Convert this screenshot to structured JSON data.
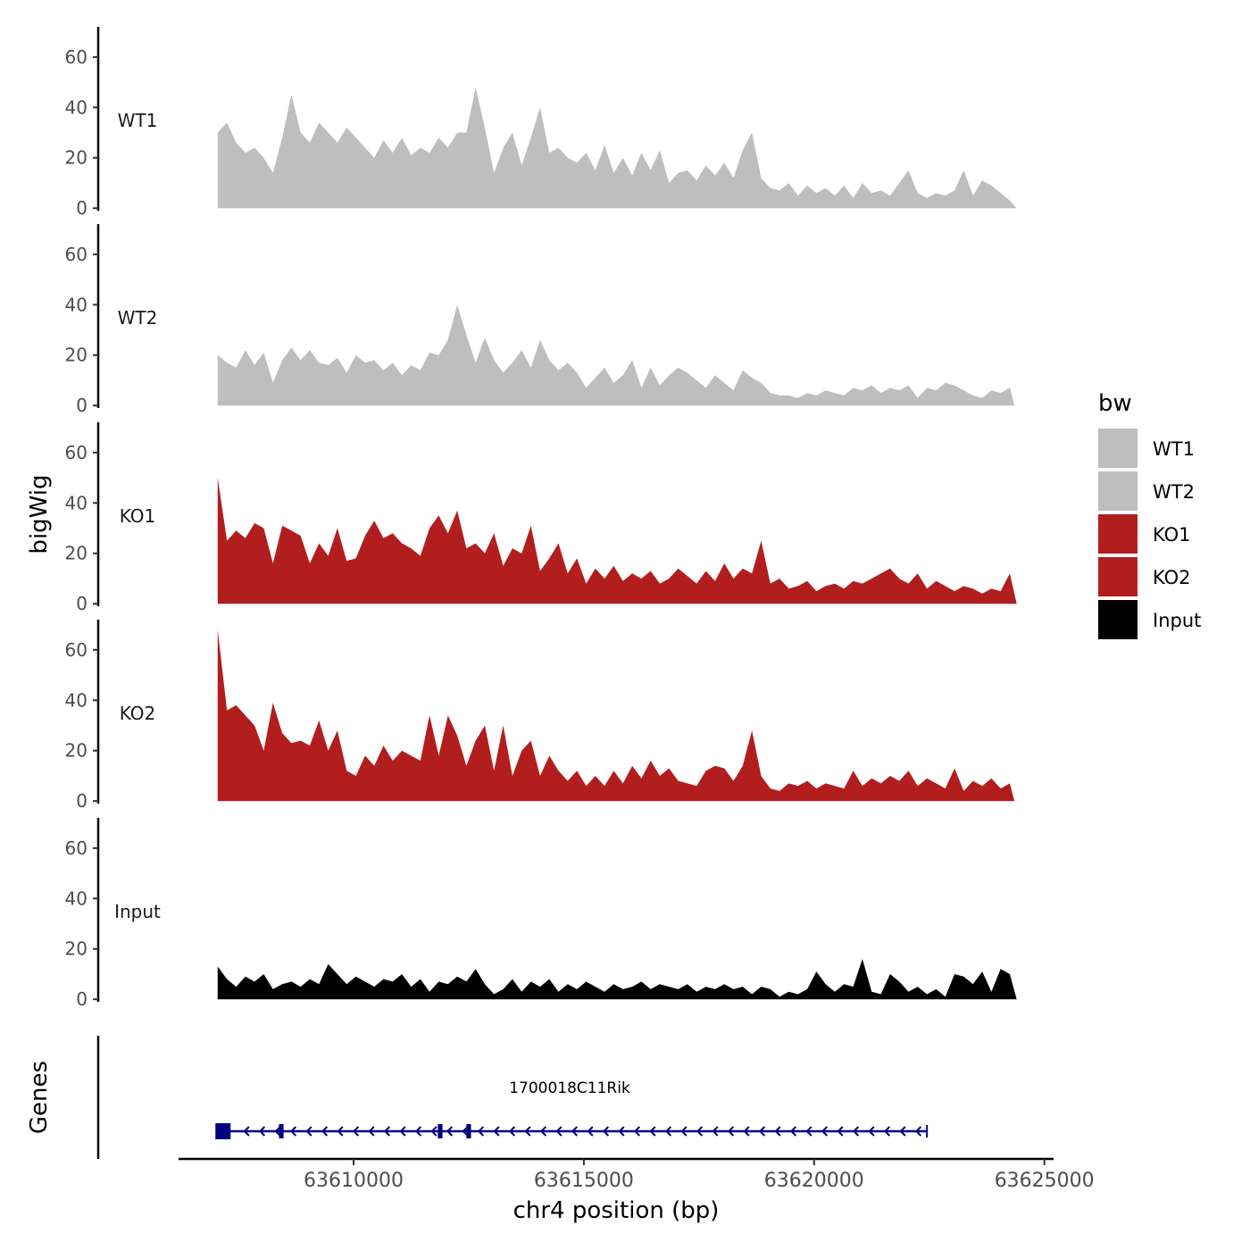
{
  "chart_data": {
    "type": "area",
    "title": "",
    "xlabel": "chr4 position (bp)",
    "ylabel": "bigWig",
    "genes_label": "Genes",
    "x_range": [
      63606200,
      63625200
    ],
    "x_ticks": [
      63610000,
      63615000,
      63620000,
      63625000
    ],
    "x_tick_labels": [
      "63610000",
      "63615000",
      "63620000",
      "63625000"
    ],
    "y_range": [
      -1,
      72
    ],
    "y_ticks": [
      0,
      20,
      40,
      60
    ],
    "y_tick_labels": [
      "0",
      "20",
      "40",
      "60"
    ],
    "legend": {
      "title": "bw",
      "position": "right",
      "entries": [
        {
          "label": "WT1",
          "color": "#bebebe"
        },
        {
          "label": "WT2",
          "color": "#bebebe"
        },
        {
          "label": "KO1",
          "color": "#b21e1e"
        },
        {
          "label": "KO2",
          "color": "#b21e1e"
        },
        {
          "label": "Input",
          "color": "#000000"
        }
      ]
    },
    "series": [
      {
        "name": "WT1",
        "color": "#bebebe",
        "x": [
          63607050,
          63607250,
          63607450,
          63607650,
          63607850,
          63608050,
          63608250,
          63608450,
          63608650,
          63608850,
          63609050,
          63609250,
          63609450,
          63609650,
          63609850,
          63610050,
          63610250,
          63610450,
          63610650,
          63610850,
          63611050,
          63611250,
          63611450,
          63611650,
          63611850,
          63612050,
          63612250,
          63612450,
          63612650,
          63612850,
          63613050,
          63613250,
          63613450,
          63613650,
          63613850,
          63614050,
          63614250,
          63614450,
          63614650,
          63614850,
          63615050,
          63615250,
          63615450,
          63615650,
          63615850,
          63616050,
          63616250,
          63616450,
          63616650,
          63616850,
          63617050,
          63617250,
          63617450,
          63617650,
          63617850,
          63618050,
          63618250,
          63618450,
          63618650,
          63618850,
          63619050,
          63619250,
          63619450,
          63619650,
          63619850,
          63620050,
          63620250,
          63620450,
          63620650,
          63620850,
          63621050,
          63621250,
          63621450,
          63621650,
          63621850,
          63622050,
          63622250,
          63622450,
          63622650,
          63622850,
          63623050,
          63623250,
          63623450,
          63623650,
          63623850,
          63624050,
          63624250,
          63624400
        ],
        "values": [
          30,
          34,
          26,
          22,
          24,
          20,
          14,
          28,
          45,
          30,
          26,
          34,
          30,
          26,
          32,
          28,
          24,
          20,
          27,
          22,
          28,
          21,
          24,
          22,
          28,
          24,
          30,
          30,
          48,
          32,
          14,
          24,
          30,
          17,
          28,
          40,
          22,
          24,
          20,
          18,
          22,
          15,
          25,
          14,
          20,
          13,
          22,
          15,
          23,
          10,
          14,
          15,
          11,
          17,
          13,
          18,
          12,
          23,
          30,
          12,
          8,
          7,
          10,
          5,
          9,
          6,
          8,
          5,
          9,
          4,
          10,
          6,
          7,
          5,
          10,
          15,
          6,
          4,
          6,
          5,
          7,
          15,
          5,
          11,
          9,
          6,
          3,
          0
        ]
      },
      {
        "name": "WT2",
        "color": "#bebebe",
        "x": [
          63607050,
          63607250,
          63607450,
          63607650,
          63607850,
          63608050,
          63608250,
          63608450,
          63608650,
          63608850,
          63609050,
          63609250,
          63609450,
          63609650,
          63609850,
          63610050,
          63610250,
          63610450,
          63610650,
          63610850,
          63611050,
          63611250,
          63611450,
          63611650,
          63611850,
          63612050,
          63612250,
          63612450,
          63612650,
          63612850,
          63613050,
          63613250,
          63613450,
          63613650,
          63613850,
          63614050,
          63614250,
          63614450,
          63614650,
          63614850,
          63615050,
          63615250,
          63615450,
          63615650,
          63615850,
          63616050,
          63616250,
          63616450,
          63616650,
          63616850,
          63617050,
          63617250,
          63617450,
          63617650,
          63617850,
          63618050,
          63618250,
          63618450,
          63618650,
          63618850,
          63619050,
          63619250,
          63619450,
          63619650,
          63619850,
          63620050,
          63620250,
          63620450,
          63620650,
          63620850,
          63621050,
          63621250,
          63621450,
          63621650,
          63621850,
          63622050,
          63622250,
          63622450,
          63622650,
          63622850,
          63623050,
          63623250,
          63623450,
          63623650,
          63623850,
          63624050,
          63624250,
          63624350
        ],
        "values": [
          20,
          17,
          15,
          22,
          16,
          21,
          9,
          18,
          23,
          18,
          22,
          17,
          16,
          19,
          13,
          20,
          17,
          18,
          14,
          17,
          12,
          16,
          14,
          21,
          20,
          26,
          40,
          28,
          17,
          27,
          18,
          13,
          17,
          22,
          15,
          26,
          18,
          14,
          17,
          13,
          7,
          11,
          15,
          9,
          12,
          18,
          7,
          15,
          8,
          12,
          15,
          13,
          10,
          7,
          12,
          9,
          6,
          14,
          11,
          9,
          5,
          4,
          4,
          3,
          5,
          4,
          6,
          5,
          4,
          7,
          6,
          8,
          5,
          7,
          6,
          8,
          3,
          7,
          6,
          9,
          8,
          6,
          4,
          3,
          6,
          5,
          7,
          0
        ]
      },
      {
        "name": "KO1",
        "color": "#b21e1e",
        "x": [
          63607050,
          63607250,
          63607450,
          63607650,
          63607850,
          63608050,
          63608250,
          63608450,
          63608650,
          63608850,
          63609050,
          63609250,
          63609450,
          63609650,
          63609850,
          63610050,
          63610250,
          63610450,
          63610650,
          63610850,
          63611050,
          63611250,
          63611450,
          63611650,
          63611850,
          63612050,
          63612250,
          63612450,
          63612650,
          63612850,
          63613050,
          63613250,
          63613450,
          63613650,
          63613850,
          63614050,
          63614250,
          63614450,
          63614650,
          63614850,
          63615050,
          63615250,
          63615450,
          63615650,
          63615850,
          63616050,
          63616250,
          63616450,
          63616650,
          63616850,
          63617050,
          63617250,
          63617450,
          63617650,
          63617850,
          63618050,
          63618250,
          63618450,
          63618650,
          63618850,
          63619050,
          63619250,
          63619450,
          63619650,
          63619850,
          63620050,
          63620250,
          63620450,
          63620650,
          63620850,
          63621050,
          63621250,
          63621450,
          63621650,
          63621850,
          63622050,
          63622250,
          63622450,
          63622650,
          63622850,
          63623050,
          63623250,
          63623450,
          63623650,
          63623850,
          63624050,
          63624250,
          63624400
        ],
        "values": [
          50,
          25,
          29,
          26,
          32,
          30,
          16,
          31,
          29,
          27,
          16,
          24,
          19,
          30,
          17,
          18,
          27,
          33,
          26,
          28,
          24,
          22,
          19,
          30,
          35,
          28,
          37,
          22,
          24,
          20,
          28,
          15,
          22,
          20,
          31,
          13,
          18,
          24,
          12,
          18,
          8,
          14,
          10,
          15,
          9,
          12,
          10,
          13,
          8,
          10,
          14,
          11,
          8,
          13,
          9,
          16,
          10,
          14,
          12,
          25,
          8,
          10,
          6,
          7,
          9,
          5,
          7,
          8,
          6,
          9,
          8,
          10,
          12,
          14,
          10,
          8,
          12,
          6,
          9,
          7,
          5,
          7,
          6,
          4,
          6,
          5,
          12,
          0
        ]
      },
      {
        "name": "KO2",
        "color": "#b21e1e",
        "x": [
          63607050,
          63607250,
          63607450,
          63607650,
          63607850,
          63608050,
          63608250,
          63608450,
          63608650,
          63608850,
          63609050,
          63609250,
          63609450,
          63609650,
          63609850,
          63610050,
          63610250,
          63610450,
          63610650,
          63610850,
          63611050,
          63611250,
          63611450,
          63611650,
          63611850,
          63612050,
          63612250,
          63612450,
          63612650,
          63612850,
          63613050,
          63613250,
          63613450,
          63613650,
          63613850,
          63614050,
          63614250,
          63614450,
          63614650,
          63614850,
          63615050,
          63615250,
          63615450,
          63615650,
          63615850,
          63616050,
          63616250,
          63616450,
          63616650,
          63616850,
          63617050,
          63617250,
          63617450,
          63617650,
          63617850,
          63618050,
          63618250,
          63618450,
          63618650,
          63618850,
          63619050,
          63619250,
          63619450,
          63619650,
          63619850,
          63620050,
          63620250,
          63620450,
          63620650,
          63620850,
          63621050,
          63621250,
          63621450,
          63621650,
          63621850,
          63622050,
          63622250,
          63622450,
          63622650,
          63622850,
          63623050,
          63623250,
          63623450,
          63623650,
          63623850,
          63624050,
          63624250,
          63624350
        ],
        "values": [
          68,
          36,
          38,
          34,
          30,
          20,
          39,
          27,
          23,
          24,
          22,
          32,
          20,
          28,
          12,
          10,
          18,
          14,
          22,
          16,
          20,
          18,
          16,
          34,
          18,
          34,
          26,
          14,
          24,
          30,
          12,
          30,
          10,
          20,
          24,
          10,
          18,
          12,
          8,
          12,
          6,
          10,
          6,
          12,
          7,
          14,
          9,
          16,
          10,
          13,
          8,
          7,
          6,
          12,
          14,
          13,
          8,
          14,
          28,
          10,
          5,
          4,
          7,
          6,
          8,
          5,
          7,
          6,
          5,
          12,
          6,
          9,
          7,
          10,
          8,
          12,
          6,
          9,
          7,
          5,
          13,
          4,
          8,
          6,
          9,
          5,
          7,
          0
        ]
      },
      {
        "name": "Input",
        "color": "#000000",
        "x": [
          63607050,
          63607250,
          63607450,
          63607650,
          63607850,
          63608050,
          63608250,
          63608450,
          63608650,
          63608850,
          63609050,
          63609250,
          63609450,
          63609650,
          63609850,
          63610050,
          63610250,
          63610450,
          63610650,
          63610850,
          63611050,
          63611250,
          63611450,
          63611650,
          63611850,
          63612050,
          63612250,
          63612450,
          63612650,
          63612850,
          63613050,
          63613250,
          63613450,
          63613650,
          63613850,
          63614050,
          63614250,
          63614450,
          63614650,
          63614850,
          63615050,
          63615250,
          63615450,
          63615650,
          63615850,
          63616050,
          63616250,
          63616450,
          63616650,
          63616850,
          63617050,
          63617250,
          63617450,
          63617650,
          63617850,
          63618050,
          63618250,
          63618450,
          63618650,
          63618850,
          63619050,
          63619250,
          63619450,
          63619650,
          63619850,
          63620050,
          63620250,
          63620450,
          63620650,
          63620850,
          63621050,
          63621250,
          63621450,
          63621650,
          63621850,
          63622050,
          63622250,
          63622450,
          63622650,
          63622850,
          63623050,
          63623250,
          63623450,
          63623650,
          63623850,
          63624050,
          63624250,
          63624400
        ],
        "values": [
          13,
          8,
          5,
          9,
          7,
          10,
          4,
          6,
          7,
          5,
          8,
          6,
          14,
          10,
          6,
          9,
          7,
          5,
          8,
          7,
          10,
          5,
          8,
          3,
          7,
          6,
          9,
          7,
          12,
          6,
          2,
          4,
          8,
          3,
          7,
          5,
          8,
          3,
          6,
          4,
          7,
          5,
          3,
          6,
          4,
          5,
          7,
          4,
          6,
          5,
          4,
          6,
          3,
          5,
          4,
          6,
          4,
          5,
          2,
          5,
          4,
          1,
          3,
          2,
          4,
          11,
          6,
          3,
          6,
          5,
          16,
          3,
          2,
          10,
          7,
          3,
          5,
          2,
          4,
          1,
          10,
          9,
          6,
          11,
          3,
          12,
          10,
          0
        ]
      }
    ],
    "gene": {
      "name": "1700018C11Rik",
      "strand": "-",
      "start": 63607050,
      "end": 63622450,
      "color": "#000080",
      "exons": [
        [
          63607000,
          63607300
        ],
        [
          63608380,
          63608480
        ],
        [
          63611830,
          63611930
        ],
        [
          63612450,
          63612550
        ]
      ]
    }
  }
}
